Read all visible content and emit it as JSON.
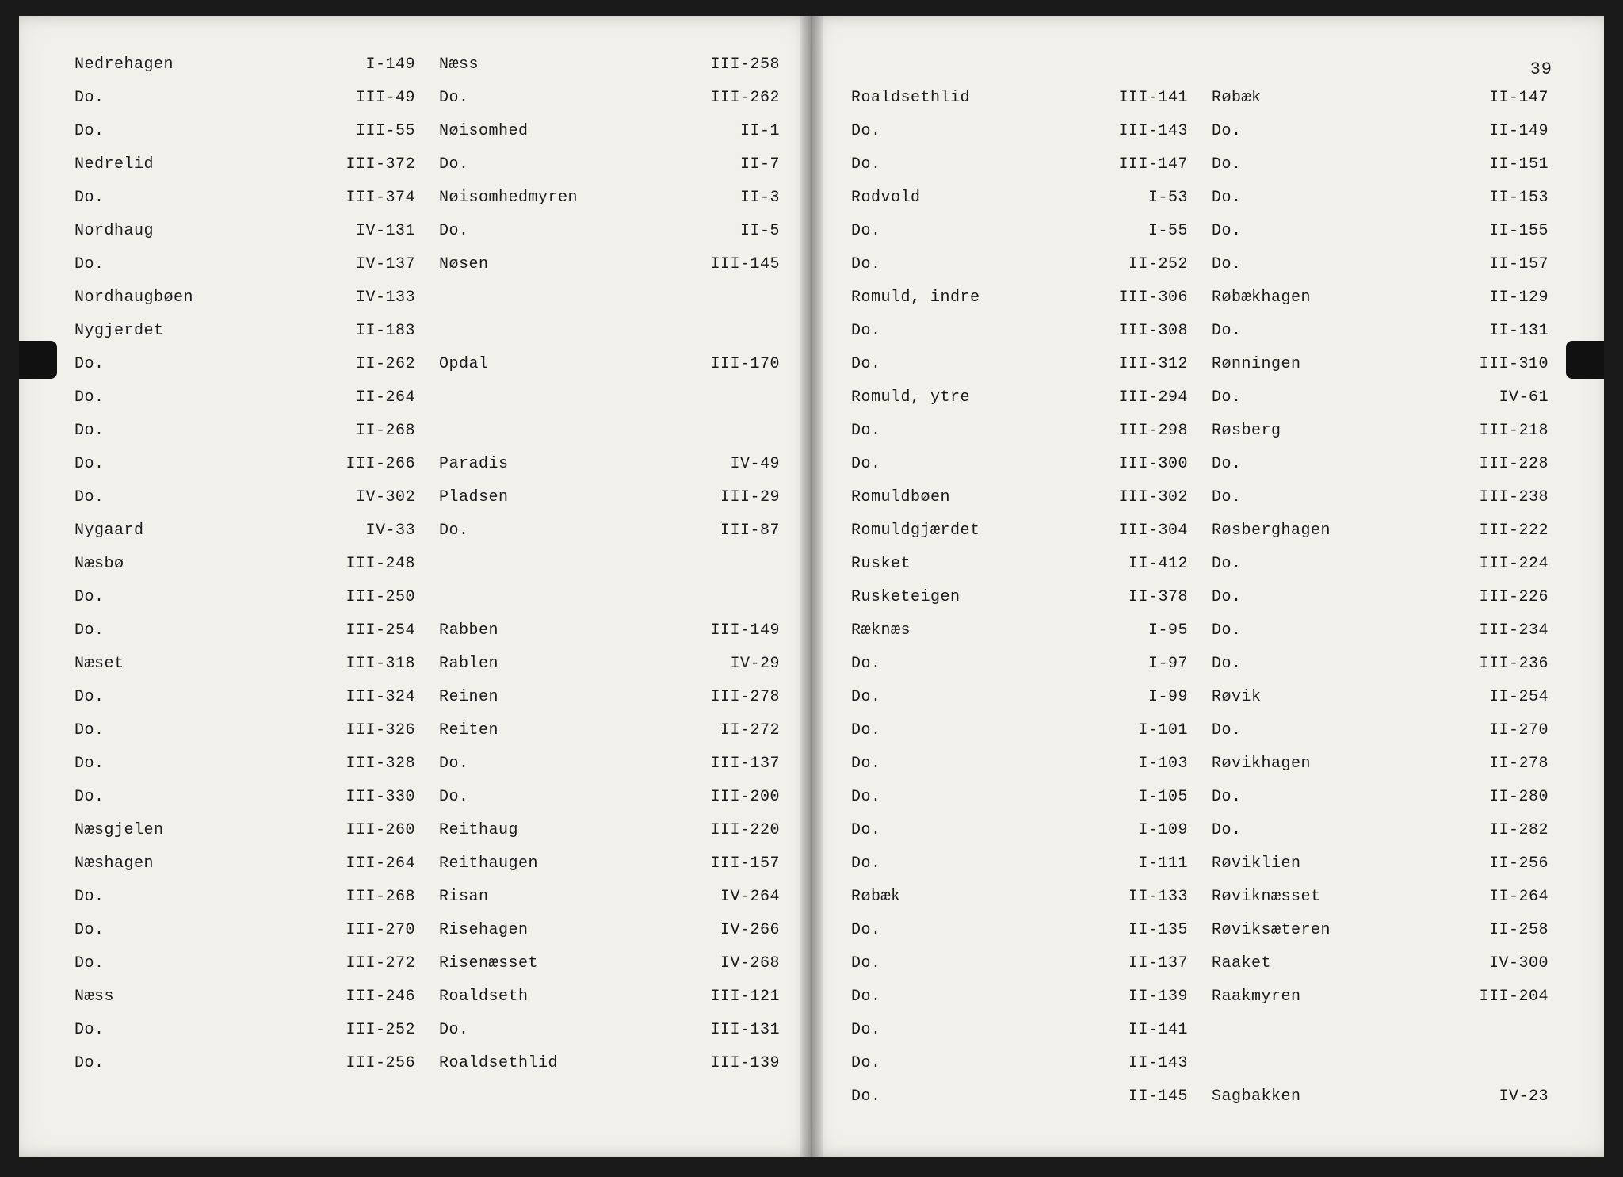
{
  "page_number": "39",
  "font": {
    "family": "Courier New",
    "size_pt": 20,
    "color": "#1a1a1a"
  },
  "colors": {
    "paper": "#f2f0eb",
    "background": "#1a1a1a",
    "clip": "#111111"
  },
  "left_page": {
    "col1": [
      {
        "name": "Nedrehagen",
        "ref": "I-149"
      },
      {
        "name": "Do.",
        "ref": "III-49"
      },
      {
        "name": "Do.",
        "ref": "III-55"
      },
      {
        "name": "Nedrelid",
        "ref": "III-372"
      },
      {
        "name": "Do.",
        "ref": "III-374"
      },
      {
        "name": "Nordhaug",
        "ref": "IV-131"
      },
      {
        "name": "Do.",
        "ref": "IV-137"
      },
      {
        "name": "Nordhaugbøen",
        "ref": "IV-133"
      },
      {
        "name": "Nygjerdet",
        "ref": "II-183"
      },
      {
        "name": "Do.",
        "ref": "II-262"
      },
      {
        "name": "Do.",
        "ref": "II-264"
      },
      {
        "name": "Do.",
        "ref": "II-268"
      },
      {
        "name": "Do.",
        "ref": "III-266"
      },
      {
        "name": "Do.",
        "ref": "IV-302"
      },
      {
        "name": "Nygaard",
        "ref": "IV-33"
      },
      {
        "name": "Næsbø",
        "ref": "III-248"
      },
      {
        "name": "Do.",
        "ref": "III-250"
      },
      {
        "name": "Do.",
        "ref": "III-254"
      },
      {
        "name": "Næset",
        "ref": "III-318"
      },
      {
        "name": "Do.",
        "ref": "III-324"
      },
      {
        "name": "Do.",
        "ref": "III-326"
      },
      {
        "name": "Do.",
        "ref": "III-328"
      },
      {
        "name": "Do.",
        "ref": "III-330"
      },
      {
        "name": "Næsgjelen",
        "ref": "III-260"
      },
      {
        "name": "Næshagen",
        "ref": "III-264"
      },
      {
        "name": "Do.",
        "ref": "III-268"
      },
      {
        "name": "Do.",
        "ref": "III-270"
      },
      {
        "name": "Do.",
        "ref": "III-272"
      },
      {
        "name": "Næss",
        "ref": "III-246"
      },
      {
        "name": "Do.",
        "ref": "III-252"
      },
      {
        "name": "Do.",
        "ref": "III-256"
      }
    ],
    "col2": [
      {
        "name": "Næss",
        "ref": "III-258"
      },
      {
        "name": "Do.",
        "ref": "III-262"
      },
      {
        "name": "Nøisomhed",
        "ref": "II-1"
      },
      {
        "name": "Do.",
        "ref": "II-7"
      },
      {
        "name": "Nøisomhedmyren",
        "ref": "II-3"
      },
      {
        "name": "Do.",
        "ref": "II-5"
      },
      {
        "name": "Nøsen",
        "ref": "III-145"
      },
      {
        "name": "",
        "ref": ""
      },
      {
        "name": "",
        "ref": ""
      },
      {
        "name": "Opdal",
        "ref": "III-170"
      },
      {
        "name": "",
        "ref": ""
      },
      {
        "name": "",
        "ref": ""
      },
      {
        "name": "Paradis",
        "ref": "IV-49"
      },
      {
        "name": "Pladsen",
        "ref": "III-29"
      },
      {
        "name": "Do.",
        "ref": "III-87"
      },
      {
        "name": "",
        "ref": ""
      },
      {
        "name": "",
        "ref": ""
      },
      {
        "name": "Rabben",
        "ref": "III-149"
      },
      {
        "name": "Rablen",
        "ref": "IV-29"
      },
      {
        "name": "Reinen",
        "ref": "III-278"
      },
      {
        "name": "Reiten",
        "ref": "II-272"
      },
      {
        "name": "Do.",
        "ref": "III-137"
      },
      {
        "name": "Do.",
        "ref": "III-200"
      },
      {
        "name": "Reithaug",
        "ref": "III-220"
      },
      {
        "name": "Reithaugen",
        "ref": "III-157"
      },
      {
        "name": "Risan",
        "ref": "IV-264"
      },
      {
        "name": "Risehagen",
        "ref": "IV-266"
      },
      {
        "name": "Risenæsset",
        "ref": "IV-268"
      },
      {
        "name": "Roaldseth",
        "ref": "III-121"
      },
      {
        "name": "Do.",
        "ref": "III-131"
      },
      {
        "name": "Roaldsethlid",
        "ref": "III-139"
      }
    ]
  },
  "right_page": {
    "col1": [
      {
        "name": "Roaldsethlid",
        "ref": "III-141"
      },
      {
        "name": "Do.",
        "ref": "III-143"
      },
      {
        "name": "Do.",
        "ref": "III-147"
      },
      {
        "name": "Rodvold",
        "ref": "I-53"
      },
      {
        "name": "Do.",
        "ref": "I-55"
      },
      {
        "name": "Do.",
        "ref": "II-252"
      },
      {
        "name": "Romuld, indre",
        "ref": "III-306"
      },
      {
        "name": "Do.",
        "ref": "III-308"
      },
      {
        "name": "Do.",
        "ref": "III-312"
      },
      {
        "name": "Romuld, ytre",
        "ref": "III-294"
      },
      {
        "name": "Do.",
        "ref": "III-298"
      },
      {
        "name": "Do.",
        "ref": "III-300"
      },
      {
        "name": "Romuldbøen",
        "ref": "III-302"
      },
      {
        "name": "Romuldgjærdet",
        "ref": "III-304"
      },
      {
        "name": "Rusket",
        "ref": "II-412"
      },
      {
        "name": "Rusketeigen",
        "ref": "II-378"
      },
      {
        "name": "Ræknæs",
        "ref": "I-95"
      },
      {
        "name": "Do.",
        "ref": "I-97"
      },
      {
        "name": "Do.",
        "ref": "I-99"
      },
      {
        "name": "Do.",
        "ref": "I-101"
      },
      {
        "name": "Do.",
        "ref": "I-103"
      },
      {
        "name": "Do.",
        "ref": "I-105"
      },
      {
        "name": "Do.",
        "ref": "I-109"
      },
      {
        "name": "Do.",
        "ref": "I-111"
      },
      {
        "name": "Røbæk",
        "ref": "II-133"
      },
      {
        "name": "Do.",
        "ref": "II-135"
      },
      {
        "name": "Do.",
        "ref": "II-137"
      },
      {
        "name": "Do.",
        "ref": "II-139"
      },
      {
        "name": "Do.",
        "ref": "II-141"
      },
      {
        "name": "Do.",
        "ref": "II-143"
      },
      {
        "name": "Do.",
        "ref": "II-145"
      }
    ],
    "col2": [
      {
        "name": "Røbæk",
        "ref": "II-147"
      },
      {
        "name": "Do.",
        "ref": "II-149"
      },
      {
        "name": "Do.",
        "ref": "II-151"
      },
      {
        "name": "Do.",
        "ref": "II-153"
      },
      {
        "name": "Do.",
        "ref": "II-155"
      },
      {
        "name": "Do.",
        "ref": "II-157"
      },
      {
        "name": "Røbækhagen",
        "ref": "II-129"
      },
      {
        "name": "Do.",
        "ref": "II-131"
      },
      {
        "name": "Rønningen",
        "ref": "III-310"
      },
      {
        "name": "Do.",
        "ref": "IV-61"
      },
      {
        "name": "Røsberg",
        "ref": "III-218"
      },
      {
        "name": "Do.",
        "ref": "III-228"
      },
      {
        "name": "Do.",
        "ref": "III-238"
      },
      {
        "name": "Røsberghagen",
        "ref": "III-222"
      },
      {
        "name": "Do.",
        "ref": "III-224"
      },
      {
        "name": "Do.",
        "ref": "III-226"
      },
      {
        "name": "Do.",
        "ref": "III-234"
      },
      {
        "name": "Do.",
        "ref": "III-236"
      },
      {
        "name": "Røvik",
        "ref": "II-254"
      },
      {
        "name": "Do.",
        "ref": "II-270"
      },
      {
        "name": "Røvikhagen",
        "ref": "II-278"
      },
      {
        "name": "Do.",
        "ref": "II-280"
      },
      {
        "name": "Do.",
        "ref": "II-282"
      },
      {
        "name": "Røviklien",
        "ref": "II-256"
      },
      {
        "name": "Røviknæsset",
        "ref": "II-264"
      },
      {
        "name": "Røviksæteren",
        "ref": "II-258"
      },
      {
        "name": "Raaket",
        "ref": "IV-300"
      },
      {
        "name": "Raakmyren",
        "ref": "III-204"
      },
      {
        "name": "",
        "ref": ""
      },
      {
        "name": "",
        "ref": ""
      },
      {
        "name": "Sagbakken",
        "ref": "IV-23"
      }
    ]
  }
}
